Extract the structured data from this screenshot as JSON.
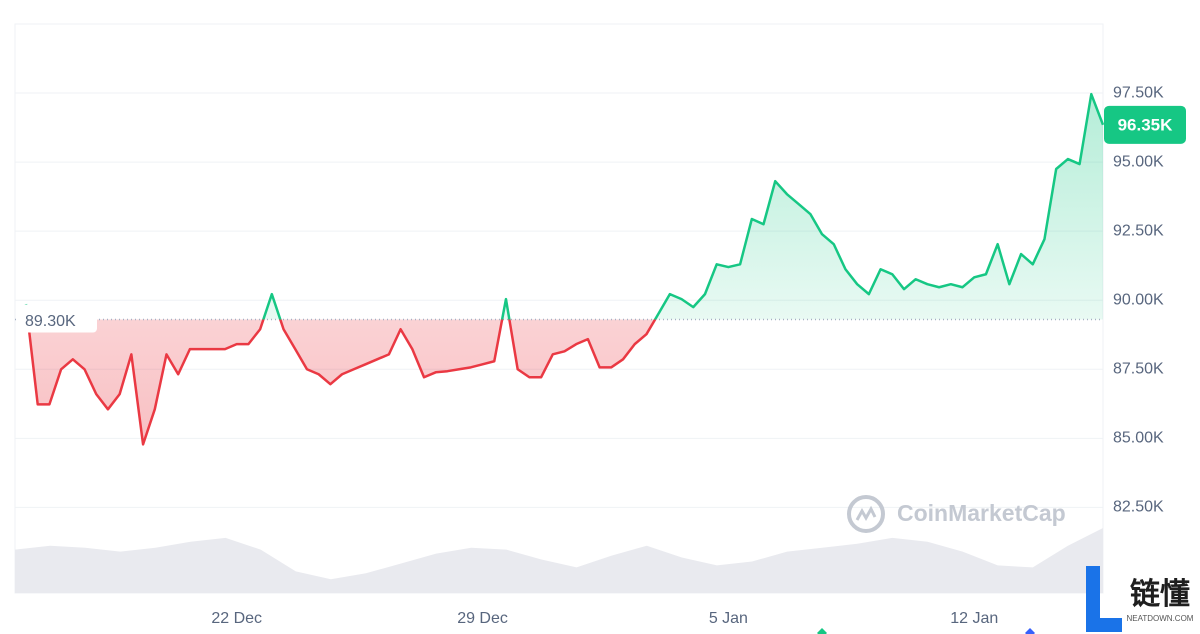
{
  "chart_data": {
    "type": "line",
    "categories": [
      null,
      null,
      null,
      null,
      null,
      null,
      null,
      null,
      null,
      null,
      null,
      null,
      null,
      null,
      null,
      null,
      null,
      null,
      "22 Dec",
      null,
      null,
      null,
      null,
      null,
      null,
      null,
      null,
      null,
      null,
      null,
      null,
      null,
      null,
      null,
      null,
      null,
      null,
      null,
      null,
      "29 Dec",
      null,
      null,
      null,
      null,
      null,
      null,
      null,
      null,
      null,
      null,
      null,
      null,
      null,
      null,
      null,
      null,
      null,
      null,
      null,
      null,
      "5 Jan",
      null,
      null,
      null,
      null,
      null,
      null,
      null,
      null,
      null,
      null,
      null,
      null,
      null,
      null,
      null,
      null,
      null,
      null,
      null,
      null,
      "12 Jan",
      null,
      null,
      null,
      null,
      null,
      null,
      null,
      null,
      null,
      null,
      null
    ],
    "series": [
      {
        "values": [
          89860,
          86230,
          86230,
          87500,
          87860,
          87500,
          86600,
          86050,
          86600,
          88040,
          84780,
          86050,
          88040,
          87320,
          88230,
          88230,
          88230,
          88230,
          88410,
          88410,
          88950,
          90220,
          88950,
          88230,
          87500,
          87320,
          86960,
          87320,
          87500,
          87680,
          87860,
          88040,
          88950,
          88230,
          87210,
          87390,
          87430,
          87500,
          87570,
          87680,
          87790,
          90040,
          87500,
          87210,
          87210,
          88040,
          88150,
          88410,
          88590,
          87570,
          87570,
          87860,
          88410,
          88770,
          89490,
          90220,
          90040,
          89750,
          90220,
          91300,
          91200,
          91300,
          92940,
          92750,
          94310,
          93840,
          93480,
          93120,
          92390,
          92030,
          91120,
          90580,
          90220,
          91120,
          90940,
          90400,
          90760,
          90580,
          90470,
          90580,
          90470,
          90830,
          90940,
          92030,
          90580,
          91670,
          91300,
          92210,
          94750,
          95110,
          94930,
          97460,
          96350
        ],
        "up_color": "#16c784",
        "down_color": "#ea3943"
      }
    ],
    "volume": {
      "color": "#e9eaef",
      "values": [
        44,
        48,
        46,
        42,
        46,
        52,
        56,
        44,
        22,
        14,
        20,
        30,
        40,
        46,
        44,
        34,
        26,
        38,
        48,
        36,
        28,
        32,
        42,
        46,
        50,
        56,
        52,
        42,
        28,
        26,
        48,
        66
      ]
    },
    "reference_line": {
      "value": 89300,
      "label": "89.30K"
    },
    "last_label": {
      "value": 96350,
      "label": "96.35K"
    },
    "ylim": [
      79400,
      100000
    ],
    "yticks": [
      {
        "value": 82500,
        "label": "82.50K"
      },
      {
        "value": 85000,
        "label": "85.00K"
      },
      {
        "value": 87500,
        "label": "87.50K"
      },
      {
        "value": 90000,
        "label": "90.00K"
      },
      {
        "value": 92500,
        "label": "92.50K"
      },
      {
        "value": 95000,
        "label": "95.00K"
      },
      {
        "value": 97500,
        "label": "97.50K"
      }
    ],
    "grid": true,
    "watermark": "CoinMarketCap",
    "corner_logo": {
      "text": "链懂",
      "subtext": "NEATDOWN.COM"
    }
  }
}
